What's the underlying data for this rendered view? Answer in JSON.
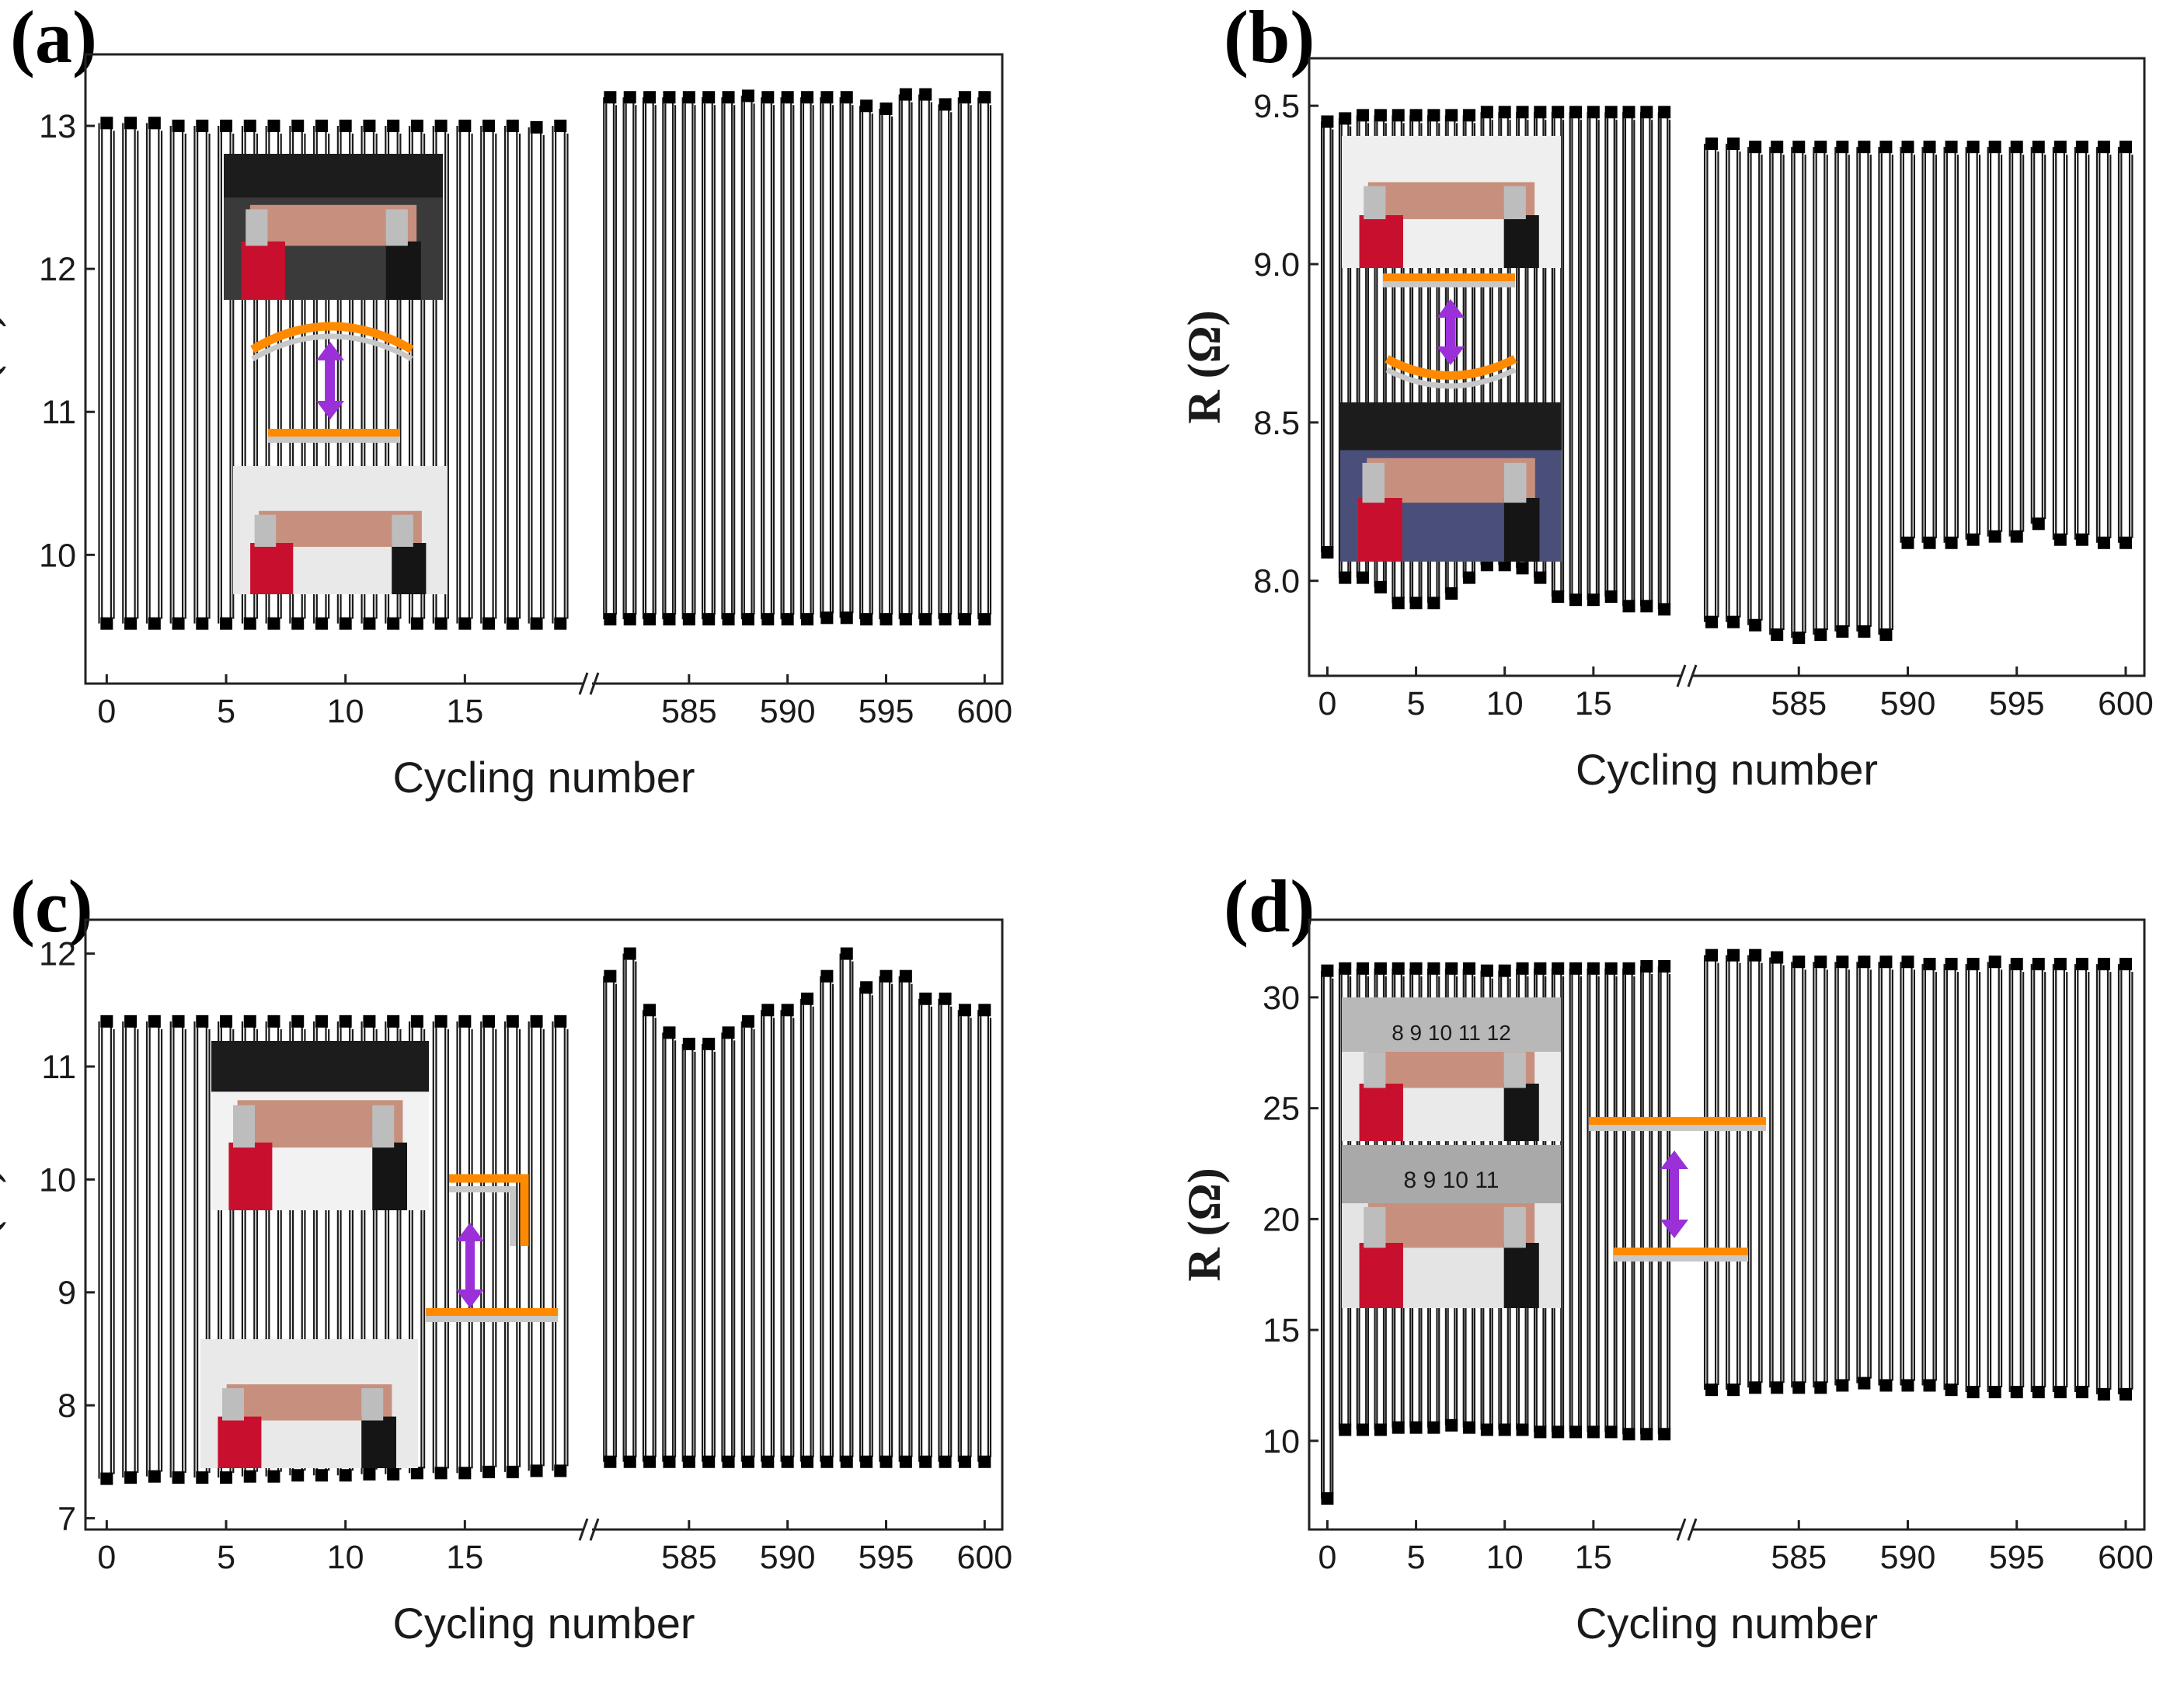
{
  "figure": {
    "panels": [
      {
        "id": "a",
        "label": "(a)",
        "xlabel": "Cycling number",
        "ylabel": "R (Ω)",
        "ylim": [
          9.1,
          13.5
        ],
        "yticks": [
          "10",
          "11",
          "12",
          "13"
        ],
        "ytick_values": [
          10,
          11,
          12,
          13
        ],
        "xticks_left": [
          "0",
          "5",
          "10",
          "15"
        ],
        "xticks_left_values": [
          0,
          5,
          10,
          15
        ],
        "xticks_right": [
          "585",
          "590",
          "595",
          "600"
        ],
        "xticks_right_values": [
          585,
          590,
          595,
          600
        ],
        "inset": {
          "top_photo": "curved-strip-photo",
          "bottom_photo": "flat-strip-photo",
          "schematic": "arc-to-flat"
        }
      },
      {
        "id": "b",
        "label": "(b)",
        "xlabel": "Cycling number",
        "ylabel": "R (Ω)",
        "ylim": [
          7.7,
          9.65
        ],
        "yticks": [
          "8.0",
          "8.5",
          "9.0",
          "9.5"
        ],
        "ytick_values": [
          8.0,
          8.5,
          9.0,
          9.5
        ],
        "xticks_left": [
          "0",
          "5",
          "10",
          "15"
        ],
        "xticks_left_values": [
          0,
          5,
          10,
          15
        ],
        "xticks_right": [
          "585",
          "590",
          "595",
          "600"
        ],
        "xticks_right_values": [
          585,
          590,
          595,
          600
        ],
        "inset": {
          "top_photo": "flat-strip-photo",
          "bottom_photo": "concave-strip-photo",
          "schematic": "flat-to-concave"
        }
      },
      {
        "id": "c",
        "label": "(c)",
        "xlabel": "Cycling number",
        "ylabel": "R (Ω)",
        "ylim": [
          6.9,
          12.3
        ],
        "yticks": [
          "7",
          "8",
          "9",
          "10",
          "11",
          "12"
        ],
        "ytick_values": [
          7,
          8,
          9,
          10,
          11,
          12
        ],
        "xticks_left": [
          "0",
          "5",
          "10",
          "15"
        ],
        "xticks_left_values": [
          0,
          5,
          10,
          15
        ],
        "xticks_right": [
          "585",
          "590",
          "595",
          "600"
        ],
        "xticks_right_values": [
          585,
          590,
          595,
          600
        ],
        "inset": {
          "top_photo": "folded-strip-photo",
          "bottom_photo": "flat-strip-photo",
          "schematic": "right-angle-to-flat"
        }
      },
      {
        "id": "d",
        "label": "(d)",
        "xlabel": "Cycling number",
        "ylabel": "R (Ω)",
        "ylim": [
          6,
          33.5
        ],
        "yticks": [
          "10",
          "15",
          "20",
          "25",
          "30"
        ],
        "ytick_values": [
          10,
          15,
          20,
          25,
          30
        ],
        "xticks_left": [
          "0",
          "5",
          "10",
          "15"
        ],
        "xticks_left_values": [
          0,
          5,
          10,
          15
        ],
        "xticks_right": [
          "585",
          "590",
          "595",
          "600"
        ],
        "xticks_right_values": [
          585,
          590,
          595,
          600
        ],
        "inset": {
          "top_photo": "stretched-strip-ruler-photo",
          "bottom_photo": "relaxed-strip-ruler-photo",
          "schematic": "stretch-long-to-short",
          "ruler_top": "8  9  10  11  12",
          "ruler_bottom": "8  9  10  11"
        }
      }
    ]
  },
  "chart_data": [
    {
      "type": "line",
      "panel": "a",
      "title": "(a)",
      "xlabel": "Cycling number",
      "ylabel": "R (Ω)",
      "xlim_segments": [
        [
          -0.5,
          20
        ],
        [
          580,
          600.5
        ]
      ],
      "ylim": [
        9.1,
        13.5
      ],
      "series": [
        {
          "name": "high state (left segment, cycles 0–19)",
          "x": [
            0,
            1,
            2,
            3,
            4,
            5,
            6,
            7,
            8,
            9,
            10,
            11,
            12,
            13,
            14,
            15,
            16,
            17,
            18,
            19
          ],
          "values": [
            13.02,
            13.02,
            13.02,
            13.0,
            13.0,
            13.0,
            13.0,
            13.0,
            13.0,
            13.0,
            13.0,
            13.0,
            13.0,
            13.0,
            13.0,
            13.0,
            13.0,
            13.0,
            12.99,
            13.0
          ]
        },
        {
          "name": "low state (left segment, cycles 0–19)",
          "x": [
            0,
            1,
            2,
            3,
            4,
            5,
            6,
            7,
            8,
            9,
            10,
            11,
            12,
            13,
            14,
            15,
            16,
            17,
            18,
            19
          ],
          "values": [
            9.52,
            9.52,
            9.52,
            9.52,
            9.52,
            9.52,
            9.52,
            9.52,
            9.52,
            9.52,
            9.52,
            9.52,
            9.52,
            9.52,
            9.52,
            9.52,
            9.52,
            9.52,
            9.52,
            9.52
          ]
        },
        {
          "name": "high state (right segment, cycles 581–600)",
          "x": [
            581,
            582,
            583,
            584,
            585,
            586,
            587,
            588,
            589,
            590,
            591,
            592,
            593,
            594,
            595,
            596,
            597,
            598,
            599,
            600
          ],
          "values": [
            13.2,
            13.2,
            13.2,
            13.2,
            13.2,
            13.2,
            13.2,
            13.21,
            13.2,
            13.2,
            13.2,
            13.2,
            13.2,
            13.14,
            13.12,
            13.22,
            13.22,
            13.15,
            13.2,
            13.2
          ]
        },
        {
          "name": "low state (right segment, cycles 581–600)",
          "x": [
            581,
            582,
            583,
            584,
            585,
            586,
            587,
            588,
            589,
            590,
            591,
            592,
            593,
            594,
            595,
            596,
            597,
            598,
            599,
            600
          ],
          "values": [
            9.55,
            9.55,
            9.55,
            9.55,
            9.55,
            9.55,
            9.55,
            9.55,
            9.55,
            9.55,
            9.55,
            9.56,
            9.56,
            9.55,
            9.55,
            9.55,
            9.55,
            9.55,
            9.55,
            9.55
          ]
        }
      ]
    },
    {
      "type": "line",
      "panel": "b",
      "title": "(b)",
      "xlabel": "Cycling number",
      "ylabel": "R (Ω)",
      "xlim_segments": [
        [
          -0.5,
          20
        ],
        [
          580,
          600.5
        ]
      ],
      "ylim": [
        7.7,
        9.65
      ],
      "series": [
        {
          "name": "high state (left segment, cycles 0–19)",
          "x": [
            0,
            1,
            2,
            3,
            4,
            5,
            6,
            7,
            8,
            9,
            10,
            11,
            12,
            13,
            14,
            15,
            16,
            17,
            18,
            19
          ],
          "values": [
            9.45,
            9.46,
            9.47,
            9.47,
            9.47,
            9.47,
            9.47,
            9.47,
            9.47,
            9.48,
            9.48,
            9.48,
            9.48,
            9.48,
            9.48,
            9.48,
            9.48,
            9.48,
            9.48,
            9.48
          ]
        },
        {
          "name": "low state (left segment, cycles 0–19)",
          "x": [
            0,
            1,
            2,
            3,
            4,
            5,
            6,
            7,
            8,
            9,
            10,
            11,
            12,
            13,
            14,
            15,
            16,
            17,
            18,
            19
          ],
          "values": [
            8.09,
            8.01,
            8.01,
            7.98,
            7.93,
            7.93,
            7.93,
            7.96,
            8.01,
            8.05,
            8.05,
            8.04,
            8.01,
            7.95,
            7.94,
            7.94,
            7.95,
            7.92,
            7.92,
            7.91
          ]
        },
        {
          "name": "high state (right segment, cycles 581–600)",
          "x": [
            581,
            582,
            583,
            584,
            585,
            586,
            587,
            588,
            589,
            590,
            591,
            592,
            593,
            594,
            595,
            596,
            597,
            598,
            599,
            600
          ],
          "values": [
            9.38,
            9.38,
            9.37,
            9.37,
            9.37,
            9.37,
            9.37,
            9.37,
            9.37,
            9.37,
            9.37,
            9.37,
            9.37,
            9.37,
            9.37,
            9.37,
            9.37,
            9.37,
            9.37,
            9.37
          ]
        },
        {
          "name": "low state (right segment, cycles 581–600)",
          "x": [
            581,
            582,
            583,
            584,
            585,
            586,
            587,
            588,
            589,
            590,
            591,
            592,
            593,
            594,
            595,
            596,
            597,
            598,
            599,
            600
          ],
          "values": [
            7.87,
            7.87,
            7.86,
            7.83,
            7.82,
            7.83,
            7.84,
            7.84,
            7.83,
            8.12,
            8.12,
            8.12,
            8.13,
            8.14,
            8.14,
            8.18,
            8.13,
            8.13,
            8.12,
            8.12
          ]
        }
      ]
    },
    {
      "type": "line",
      "panel": "c",
      "title": "(c)",
      "xlabel": "Cycling number",
      "ylabel": "R (Ω)",
      "xlim_segments": [
        [
          -0.5,
          20
        ],
        [
          580,
          600.5
        ]
      ],
      "ylim": [
        6.9,
        12.3
      ],
      "series": [
        {
          "name": "high state (left segment, cycles 0–19)",
          "x": [
            0,
            1,
            2,
            3,
            4,
            5,
            6,
            7,
            8,
            9,
            10,
            11,
            12,
            13,
            14,
            15,
            16,
            17,
            18,
            19
          ],
          "values": [
            11.4,
            11.4,
            11.4,
            11.4,
            11.4,
            11.4,
            11.4,
            11.4,
            11.4,
            11.4,
            11.4,
            11.4,
            11.4,
            11.4,
            11.4,
            11.4,
            11.4,
            11.4,
            11.4,
            11.4
          ]
        },
        {
          "name": "low state (left segment, cycles 0–19)",
          "x": [
            0,
            1,
            2,
            3,
            4,
            5,
            6,
            7,
            8,
            9,
            10,
            11,
            12,
            13,
            14,
            15,
            16,
            17,
            18,
            19
          ],
          "values": [
            7.35,
            7.36,
            7.37,
            7.36,
            7.36,
            7.36,
            7.37,
            7.37,
            7.38,
            7.38,
            7.38,
            7.39,
            7.39,
            7.4,
            7.4,
            7.4,
            7.41,
            7.41,
            7.42,
            7.42
          ]
        },
        {
          "name": "high state (right segment, cycles 581–600)",
          "x": [
            581,
            582,
            583,
            584,
            585,
            586,
            587,
            588,
            589,
            590,
            591,
            592,
            593,
            594,
            595,
            596,
            597,
            598,
            599,
            600
          ],
          "values": [
            11.8,
            12.0,
            11.5,
            11.3,
            11.2,
            11.2,
            11.3,
            11.4,
            11.5,
            11.5,
            11.6,
            11.8,
            12.0,
            11.7,
            11.8,
            11.8,
            11.6,
            11.6,
            11.5,
            11.5
          ]
        },
        {
          "name": "low state (right segment, cycles 581–600)",
          "x": [
            581,
            582,
            583,
            584,
            585,
            586,
            587,
            588,
            589,
            590,
            591,
            592,
            593,
            594,
            595,
            596,
            597,
            598,
            599,
            600
          ],
          "values": [
            7.5,
            7.5,
            7.5,
            7.5,
            7.5,
            7.5,
            7.5,
            7.5,
            7.5,
            7.5,
            7.5,
            7.5,
            7.5,
            7.5,
            7.5,
            7.5,
            7.5,
            7.5,
            7.5,
            7.5
          ]
        }
      ]
    },
    {
      "type": "line",
      "panel": "d",
      "title": "(d)",
      "xlabel": "Cycling number",
      "ylabel": "R (Ω)",
      "xlim_segments": [
        [
          -0.5,
          20
        ],
        [
          580,
          600.5
        ]
      ],
      "ylim": [
        6,
        33.5
      ],
      "series": [
        {
          "name": "high state (left segment, cycles 0–19)",
          "x": [
            0,
            1,
            2,
            3,
            4,
            5,
            6,
            7,
            8,
            9,
            10,
            11,
            12,
            13,
            14,
            15,
            16,
            17,
            18,
            19
          ],
          "values": [
            31.2,
            31.3,
            31.3,
            31.3,
            31.3,
            31.3,
            31.3,
            31.3,
            31.3,
            31.2,
            31.2,
            31.3,
            31.3,
            31.3,
            31.3,
            31.3,
            31.3,
            31.3,
            31.4,
            31.4
          ]
        },
        {
          "name": "low state (left segment, cycles 0–19)",
          "x": [
            0,
            1,
            2,
            3,
            4,
            5,
            6,
            7,
            8,
            9,
            10,
            11,
            12,
            13,
            14,
            15,
            16,
            17,
            18,
            19
          ],
          "values": [
            7.4,
            10.5,
            10.5,
            10.5,
            10.6,
            10.6,
            10.6,
            10.7,
            10.6,
            10.5,
            10.5,
            10.5,
            10.4,
            10.4,
            10.4,
            10.4,
            10.4,
            10.3,
            10.3,
            10.3
          ]
        },
        {
          "name": "high state (right segment, cycles 581–600)",
          "x": [
            581,
            582,
            583,
            584,
            585,
            586,
            587,
            588,
            589,
            590,
            591,
            592,
            593,
            594,
            595,
            596,
            597,
            598,
            599,
            600
          ],
          "values": [
            31.9,
            31.9,
            31.9,
            31.8,
            31.6,
            31.6,
            31.6,
            31.6,
            31.6,
            31.6,
            31.5,
            31.5,
            31.5,
            31.6,
            31.5,
            31.5,
            31.5,
            31.5,
            31.5,
            31.5
          ]
        },
        {
          "name": "low state (right segment, cycles 581–600)",
          "x": [
            581,
            582,
            583,
            584,
            585,
            586,
            587,
            588,
            589,
            590,
            591,
            592,
            593,
            594,
            595,
            596,
            597,
            598,
            599,
            600
          ],
          "values": [
            12.3,
            12.3,
            12.4,
            12.4,
            12.4,
            12.4,
            12.5,
            12.6,
            12.5,
            12.5,
            12.5,
            12.3,
            12.2,
            12.2,
            12.2,
            12.2,
            12.2,
            12.2,
            12.1,
            12.1
          ]
        }
      ]
    }
  ]
}
